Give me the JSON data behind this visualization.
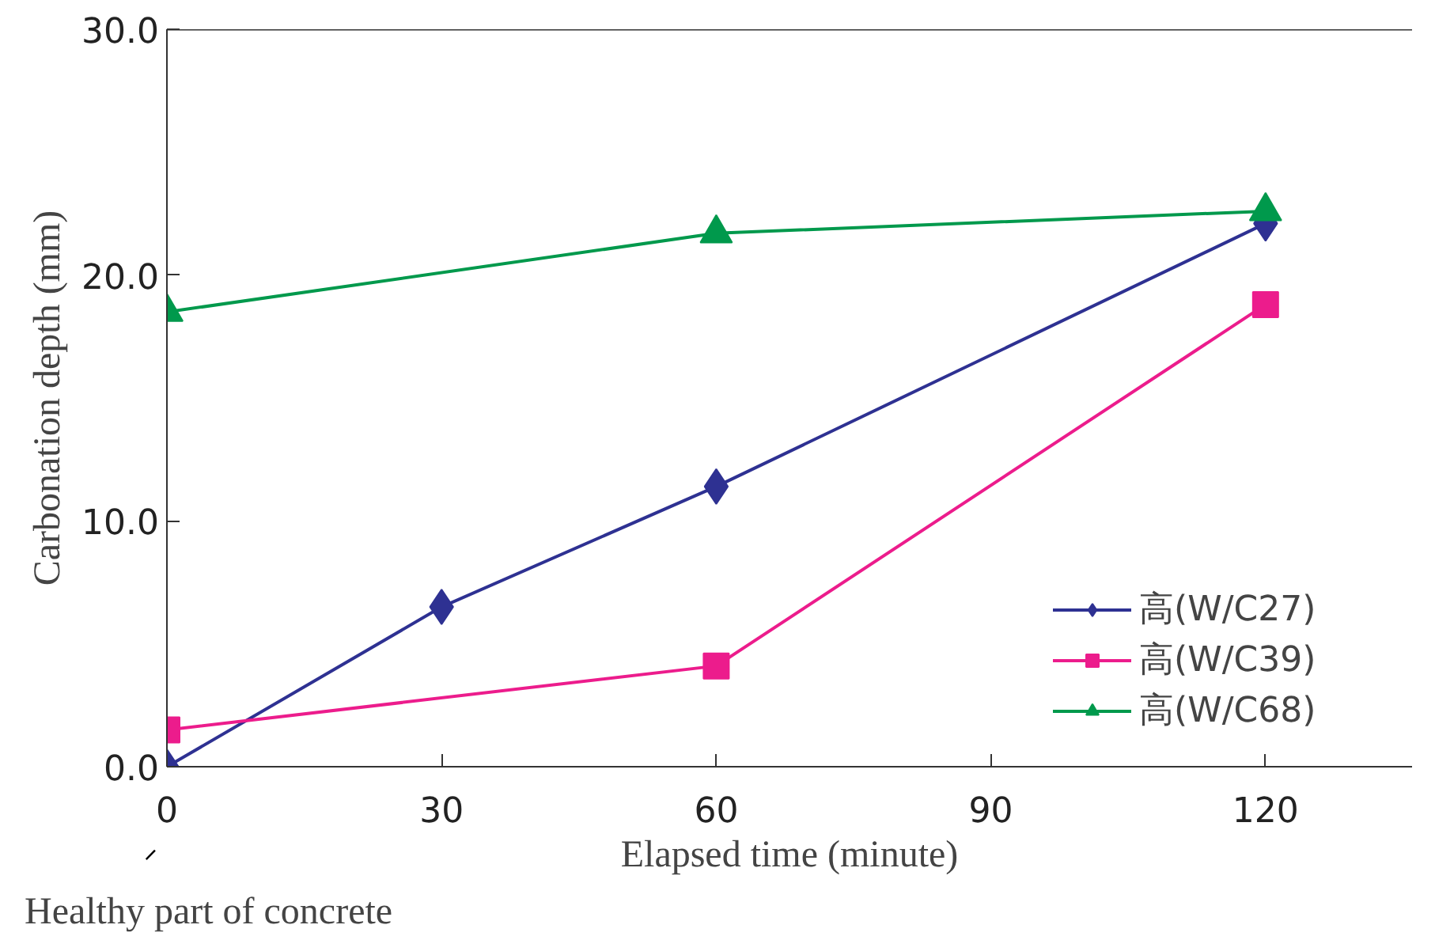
{
  "chart_data": {
    "type": "line",
    "xlabel": "Elapsed time (minute)",
    "ylabel": "Carbonation depth (mm)",
    "annotations": [
      "Healthy part of concrete"
    ],
    "xlim": [
      0,
      136
    ],
    "xticks": [
      0,
      30,
      60,
      90,
      120
    ],
    "ylim": [
      0,
      30
    ],
    "yticks": [
      {
        "value": 0,
        "label": "0.0"
      },
      {
        "value": 10,
        "label": "10.0"
      },
      {
        "value": 20,
        "label": "20.0"
      },
      {
        "value": 30,
        "label": "30.0"
      }
    ],
    "grid": false,
    "legend": "right",
    "series": [
      {
        "name": "高(W/C27)",
        "color": "#2e3192",
        "marker": "diamond",
        "x": [
          0,
          30,
          60,
          120
        ],
        "values": [
          0,
          6.5,
          11.4,
          22.1
        ]
      },
      {
        "name": "高(W/C39)",
        "color": "#ec1c8c",
        "marker": "square",
        "x": [
          0,
          60,
          120
        ],
        "values": [
          1.5,
          4.1,
          18.8
        ]
      },
      {
        "name": "高(W/C68)",
        "color": "#00994c",
        "marker": "triangle",
        "x": [
          0,
          60,
          120
        ],
        "values": [
          18.5,
          21.7,
          22.6
        ]
      }
    ]
  }
}
